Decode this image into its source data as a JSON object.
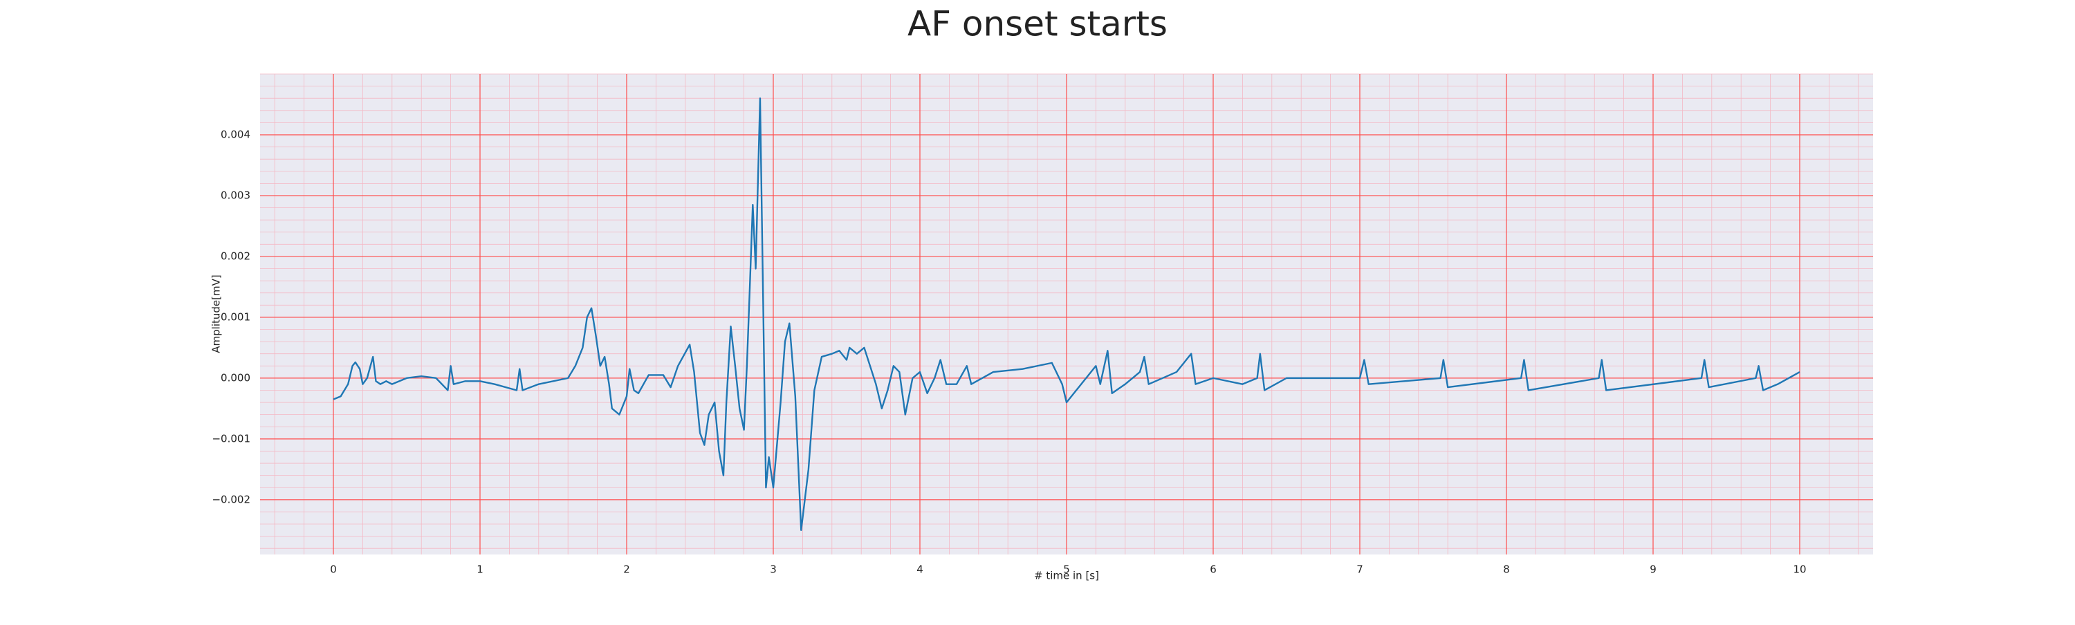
{
  "chart_data": {
    "type": "line",
    "title": "AF onset starts",
    "x_label": "# time in [s]",
    "y_label": "Amplitude[mV]",
    "color": "#1f77b4",
    "x": [
      0,
      0.05,
      0.1,
      0.13,
      0.15,
      0.18,
      0.2,
      0.23,
      0.27,
      0.29,
      0.32,
      0.36,
      0.4,
      0.5,
      0.6,
      0.7,
      0.78,
      0.8,
      0.82,
      0.9,
      1.0,
      1.1,
      1.25,
      1.27,
      1.29,
      1.4,
      1.6,
      1.65,
      1.7,
      1.73,
      1.76,
      1.79,
      1.82,
      1.85,
      1.88,
      1.9,
      1.95,
      2.0,
      2.02,
      2.05,
      2.08,
      2.15,
      2.25,
      2.3,
      2.35,
      2.43,
      2.46,
      2.5,
      2.53,
      2.56,
      2.6,
      2.63,
      2.66,
      2.68,
      2.71,
      2.74,
      2.77,
      2.8,
      2.82,
      2.84,
      2.86,
      2.88,
      2.91,
      2.95,
      2.97,
      3.0,
      3.05,
      3.08,
      3.11,
      3.15,
      3.19,
      3.24,
      3.28,
      3.33,
      3.4,
      3.45,
      3.5,
      3.52,
      3.57,
      3.62,
      3.66,
      3.7,
      3.74,
      3.78,
      3.82,
      3.86,
      3.9,
      3.95,
      4.0,
      4.05,
      4.1,
      4.14,
      4.18,
      4.25,
      4.32,
      4.35,
      4.5,
      4.7,
      4.9,
      4.97,
      5.0,
      5.1,
      5.2,
      5.23,
      5.28,
      5.31,
      5.4,
      5.5,
      5.53,
      5.56,
      5.75,
      5.85,
      5.88,
      6.0,
      6.2,
      6.3,
      6.32,
      6.35,
      6.5,
      7.0,
      7.03,
      7.06,
      7.55,
      7.57,
      7.6,
      8.1,
      8.12,
      8.15,
      8.63,
      8.65,
      8.68,
      9.33,
      9.35,
      9.38,
      9.7,
      9.72,
      9.75,
      9.85,
      10.0
    ],
    "values": [
      -0.00035,
      -0.0003,
      -0.0001,
      0.0002,
      0.00026,
      0.00015,
      -0.0001,
      0,
      0.00035,
      -5e-05,
      -0.0001,
      -5e-05,
      -0.0001,
      0,
      3e-05,
      0,
      -0.0002,
      0.0002,
      -0.0001,
      -5e-05,
      -5e-05,
      -0.0001,
      -0.0002,
      0.00015,
      -0.0002,
      -0.0001,
      0,
      0.0002,
      0.0005,
      0.001,
      0.00115,
      0.0007,
      0.0002,
      0.00035,
      -0.0001,
      -0.0005,
      -0.0006,
      -0.0003,
      0.00015,
      -0.0002,
      -0.00025,
      5e-05,
      5e-05,
      -0.00015,
      0.0002,
      0.00055,
      0.0001,
      -0.0009,
      -0.0011,
      -0.0006,
      -0.0004,
      -0.0012,
      -0.0016,
      -0.0004,
      0.00085,
      0.0002,
      -0.0005,
      -0.00085,
      0.0002,
      0.0015,
      0.00285,
      0.0018,
      0.0046,
      -0.0018,
      -0.0013,
      -0.0018,
      -0.0004,
      0.0006,
      0.0009,
      -0.0003,
      -0.0025,
      -0.0015,
      -0.0002,
      0.00035,
      0.0004,
      0.00045,
      0.0003,
      0.0005,
      0.0004,
      0.0005,
      0.0002,
      -0.0001,
      -0.0005,
      -0.0002,
      0.0002,
      0.0001,
      -0.0006,
      0,
      0.0001,
      -0.00025,
      0,
      0.0003,
      -0.0001,
      -0.0001,
      0.0002,
      -0.0001,
      0.0001,
      0.00015,
      0.00025,
      -0.0001,
      -0.0004,
      -0.0001,
      0.0002,
      -0.0001,
      0.00045,
      -0.00025,
      -0.0001,
      0.0001,
      0.00035,
      -0.0001,
      0.0001,
      0.0004,
      -0.0001,
      0,
      -0.0001,
      0,
      0.0004,
      -0.0002,
      0,
      0,
      0.0003,
      -0.0001,
      0,
      0.0003,
      -0.00015,
      0,
      0.0003,
      -0.0002,
      0,
      0.0003,
      -0.0002,
      0,
      0.0003,
      -0.00015,
      0,
      0.0002,
      -0.0002,
      -0.0001,
      0.0001
    ],
    "xlim": [
      -0.5,
      10.5
    ],
    "xticks": [
      0,
      1,
      2,
      3,
      4,
      5,
      6,
      7,
      8,
      9,
      10
    ],
    "ylim": [
      -0.0029,
      0.005
    ],
    "yticks": [
      {
        "value": -0.002,
        "label": "−0.002"
      },
      {
        "value": -0.001,
        "label": "−0.001"
      },
      {
        "value": 0,
        "label": "0.000"
      },
      0.001,
      0.002,
      0.003,
      0.004
    ],
    "grid": true,
    "minor_grid": true
  }
}
